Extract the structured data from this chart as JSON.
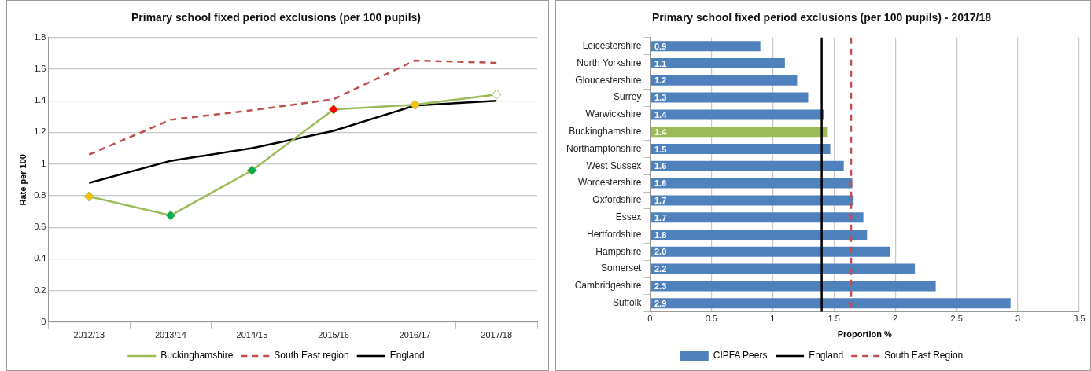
{
  "chart_data": [
    {
      "type": "line",
      "title": "Primary school fixed period exclusions (per 100 pupils)",
      "ylabel": "Rate per 100",
      "categories": [
        "2012/13",
        "2013/14",
        "2014/15",
        "2015/16",
        "2016/17",
        "2017/18"
      ],
      "series": [
        {
          "name": "Buckinghamshire",
          "color": "#9bbb59",
          "marker": "diamond",
          "line_style": "solid",
          "values": [
            0.795,
            0.675,
            0.96,
            1.345,
            1.375,
            1.44
          ],
          "colors": [
            "#ffc000",
            "#00b050",
            "#00b050",
            "#ff0000",
            "#ffc000",
            "#ffffff"
          ]
        },
        {
          "name": "South East region",
          "color": "#c0504d",
          "marker": "none",
          "line_style": "dashed",
          "values": [
            1.06,
            1.28,
            1.34,
            1.41,
            1.655,
            1.64
          ]
        },
        {
          "name": "England",
          "color": "#000000",
          "marker": "none",
          "line_style": "solid",
          "values": [
            0.88,
            1.02,
            1.1,
            1.21,
            1.37,
            1.4
          ]
        }
      ],
      "ylim": [
        0,
        1.8
      ],
      "yticks": [
        0,
        0.2,
        0.4,
        0.6,
        0.8,
        1,
        1.2,
        1.4,
        1.6,
        1.8
      ],
      "grid": "y",
      "legend": "bottom"
    },
    {
      "type": "bar",
      "orientation": "horizontal",
      "title": "Primary school fixed period exclusions (per 100 pupils) - 2017/18",
      "xlabel": "Proportion %",
      "categories": [
        "Leicestershire",
        "North Yorkshire",
        "Gloucestershire",
        "Surrey",
        "Warwickshire",
        "Buckinghamshire",
        "Northamptonshire",
        "West Sussex",
        "Worcestershire",
        "Oxfordshire",
        "Essex",
        "Hertfordshire",
        "Hampshire",
        "Somerset",
        "Cambridgeshire",
        "Suffolk"
      ],
      "series": [
        {
          "name": "CIPFA Peers",
          "color": "#4f81bd",
          "values": [
            0.9,
            1.1,
            1.2,
            1.29,
            1.42,
            1.45,
            1.47,
            1.58,
            1.65,
            1.66,
            1.74,
            1.77,
            1.96,
            2.16,
            2.33,
            2.94
          ],
          "colors": [
            "#4f81bd",
            "#4f81bd",
            "#4f81bd",
            "#4f81bd",
            "#4f81bd",
            "#9bbb59",
            "#4f81bd",
            "#4f81bd",
            "#4f81bd",
            "#4f81bd",
            "#4f81bd",
            "#4f81bd",
            "#4f81bd",
            "#4f81bd",
            "#4f81bd",
            "#4f81bd"
          ],
          "value_labels": [
            "0.9",
            "1.1",
            "1.2",
            "1.3",
            "1.4",
            "1.4",
            "1.5",
            "1.6",
            "1.6",
            "1.7",
            "1.7",
            "1.8",
            "2.0",
            "2.2",
            "2.3",
            "2.9"
          ]
        }
      ],
      "ref_lines": [
        {
          "axis": "x",
          "value": 1.4,
          "label": "England",
          "color": "#000000",
          "line_style": "solid"
        },
        {
          "axis": "x",
          "value": 1.64,
          "label": "South East Region",
          "color": "#c0504d",
          "line_style": "dashed"
        }
      ],
      "xlim": [
        0,
        3.5
      ],
      "xticks": [
        0,
        0.5,
        1,
        1.5,
        2,
        2.5,
        3,
        3.5
      ],
      "grid": "x",
      "legend": "bottom"
    }
  ]
}
